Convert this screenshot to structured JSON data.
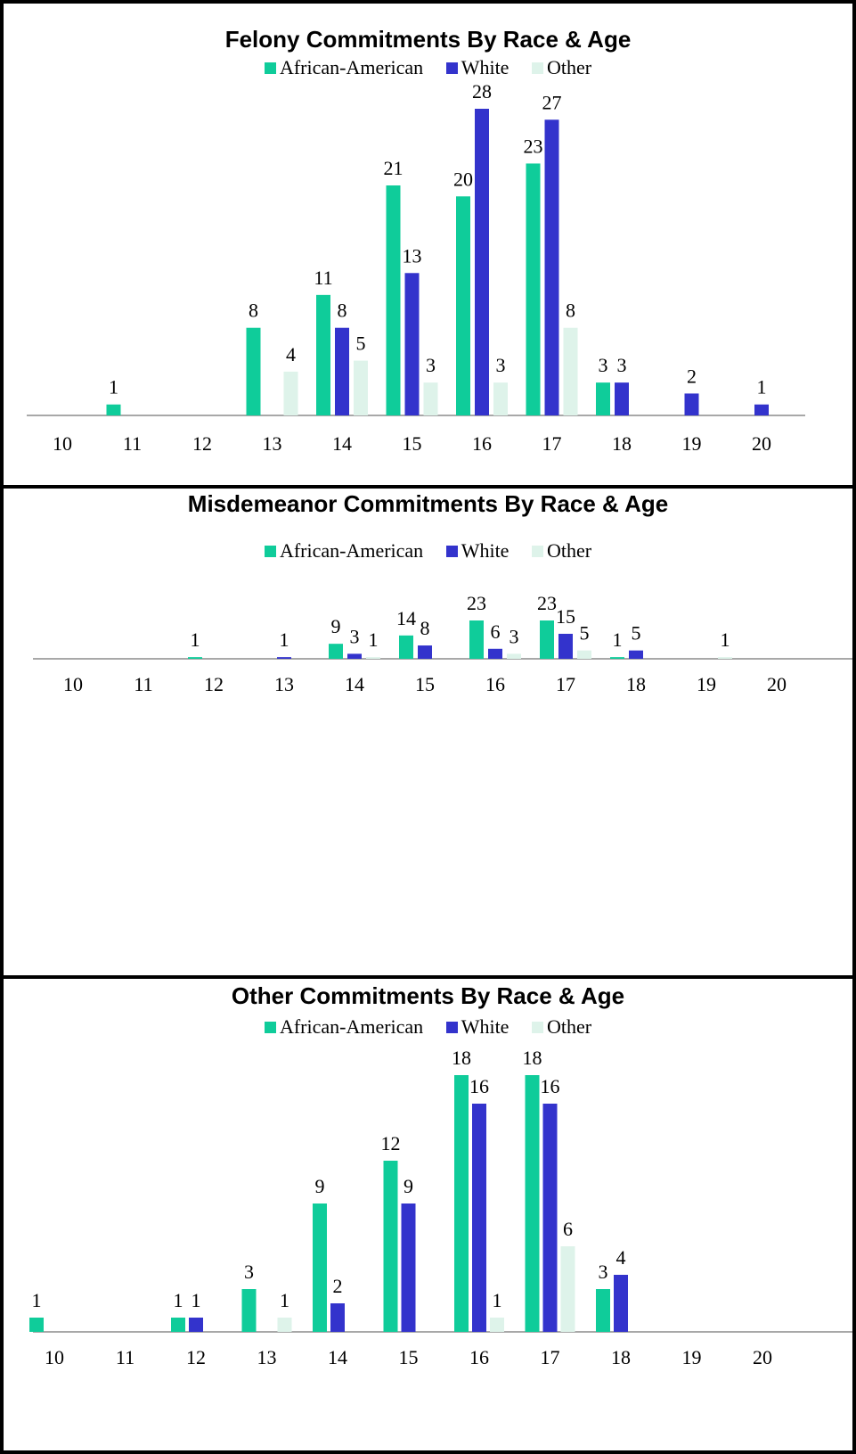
{
  "colors": {
    "african_american": "#0fcc9a",
    "white": "#3333cc",
    "other": "#def3ea"
  },
  "chart_data": [
    {
      "type": "bar",
      "title": "Felony Commitments By Race & Age",
      "legend_position": "top",
      "categories": [
        "10",
        "11",
        "12",
        "13",
        "14",
        "15",
        "16",
        "17",
        "18",
        "19",
        "20"
      ],
      "series": [
        {
          "name": "African-American",
          "values": [
            null,
            1,
            null,
            8,
            11,
            21,
            20,
            23,
            3,
            null,
            null
          ]
        },
        {
          "name": "White",
          "values": [
            null,
            null,
            null,
            null,
            8,
            13,
            28,
            27,
            3,
            2,
            1
          ]
        },
        {
          "name": "Other",
          "values": [
            null,
            null,
            null,
            4,
            5,
            3,
            3,
            8,
            null,
            null,
            null
          ]
        }
      ],
      "ylim": [
        0,
        28
      ],
      "grid": false
    },
    {
      "type": "bar",
      "title": "Misdemeanor Commitments By Race & Age",
      "legend_position": "top",
      "categories": [
        "10",
        "11",
        "12",
        "13",
        "14",
        "15",
        "16",
        "17",
        "18",
        "19",
        "20"
      ],
      "series": [
        {
          "name": "African-American",
          "values": [
            null,
            null,
            1,
            null,
            9,
            14,
            23,
            23,
            1,
            null,
            null
          ]
        },
        {
          "name": "White",
          "values": [
            null,
            null,
            null,
            1,
            3,
            8,
            6,
            15,
            5,
            null,
            null
          ]
        },
        {
          "name": "Other",
          "values": [
            null,
            null,
            null,
            null,
            1,
            null,
            3,
            5,
            null,
            1,
            null
          ]
        }
      ],
      "ylim": [
        0,
        23
      ],
      "grid": false
    },
    {
      "type": "bar",
      "title": "Other Commitments By Race & Age",
      "legend_position": "top",
      "categories": [
        "10",
        "11",
        "12",
        "13",
        "14",
        "15",
        "16",
        "17",
        "18",
        "19",
        "20"
      ],
      "series": [
        {
          "name": "African-American",
          "values": [
            1,
            null,
            1,
            3,
            9,
            12,
            18,
            18,
            3,
            null,
            null
          ]
        },
        {
          "name": "White",
          "values": [
            null,
            null,
            1,
            null,
            2,
            9,
            16,
            16,
            4,
            null,
            null
          ]
        },
        {
          "name": "Other",
          "values": [
            null,
            null,
            null,
            1,
            null,
            null,
            1,
            6,
            null,
            null,
            null
          ]
        }
      ],
      "ylim": [
        0,
        18
      ],
      "grid": false
    }
  ]
}
